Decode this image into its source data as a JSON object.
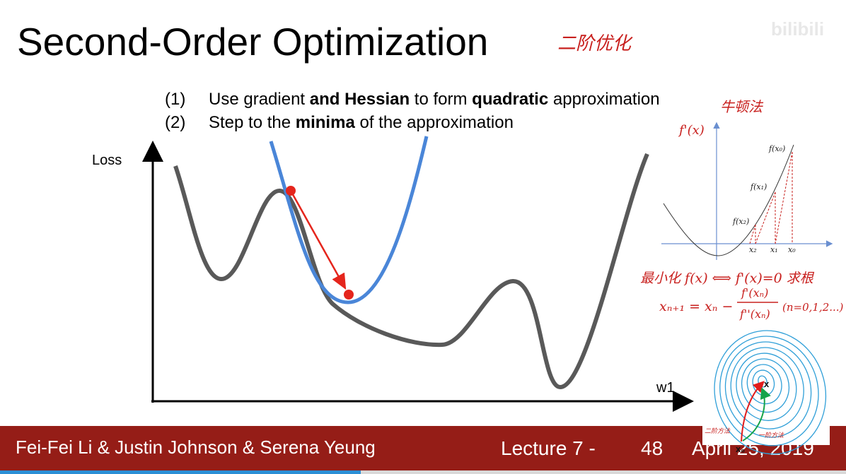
{
  "header": {
    "title": "Second-Order Optimization",
    "note": "二阶优化",
    "watermark": "bilibili"
  },
  "bullets": [
    {
      "number": "(1)",
      "parts": [
        {
          "text": "Use gradient ",
          "bold": false
        },
        {
          "text": "and Hessian",
          "bold": true
        },
        {
          "text": " to form ",
          "bold": false
        },
        {
          "text": "quadratic",
          "bold": true
        },
        {
          "text": " approximation",
          "bold": false
        }
      ]
    },
    {
      "number": "(2)",
      "parts": [
        {
          "text": "Step to the ",
          "bold": false
        },
        {
          "text": "minima",
          "bold": true
        },
        {
          "text": " of the approximation",
          "bold": false
        }
      ]
    }
  ],
  "plot": {
    "y_label": "Loss",
    "x_label": "w1"
  },
  "newton": {
    "title": "牛顿法",
    "axis_label": "f'(x)",
    "point_labels": [
      "f(x₀)",
      "f(x₁)",
      "f(x₂)"
    ],
    "x_labels": [
      "x₂",
      "x₁",
      "x₀"
    ],
    "equivalence": "最小化 f(x) ⟺ f'(x)=0 求根",
    "update": {
      "lhs": "xₙ₊₁ = xₙ −",
      "numerator": "f'(xₙ)",
      "denominator": "f''(xₙ)",
      "range": "(n=0,1,2...)"
    }
  },
  "contour": {
    "minimum": "x",
    "second_order": "二阶方法",
    "first_order": "一阶方法",
    "start": "x₀"
  },
  "footer": {
    "authors": "Fei-Fei Li & Justin Johnson & Serena Yeung",
    "lecture": "Lecture 7 -",
    "page": "48",
    "date": "April 25, 2019"
  }
}
